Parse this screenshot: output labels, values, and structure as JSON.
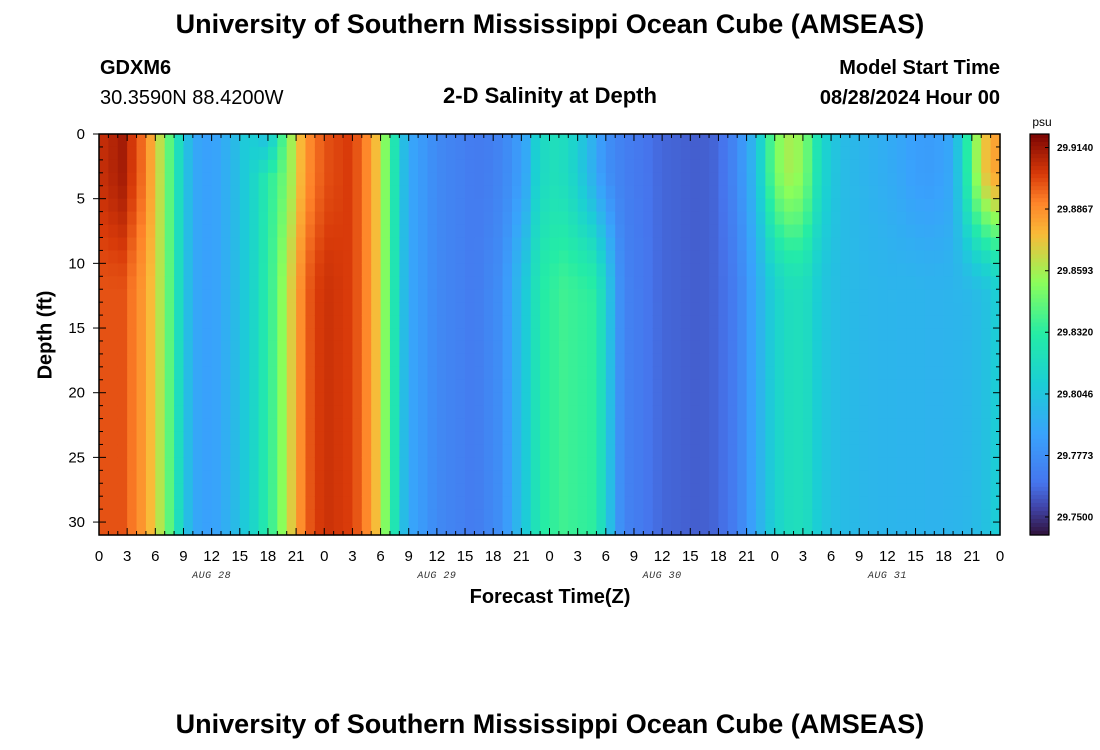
{
  "header": {
    "title": "University of Southern Mississippi Ocean Cube (AMSEAS)",
    "station": "GDXM6",
    "coords": "30.3590N  88.4200W",
    "subtitle": "2-D Salinity at Depth",
    "model_start_label": "Model Start Time",
    "model_start_value": "08/28/2024 Hour 00"
  },
  "footer": {
    "title": "University of Southern Mississippi Ocean Cube (AMSEAS)"
  },
  "chart_data": {
    "type": "heatmap",
    "title": "2-D Salinity at Depth",
    "xlabel": "Forecast Time(Z)",
    "ylabel": "Depth (ft)",
    "colorbar_unit": "psu",
    "x_range_hours": [
      0,
      96
    ],
    "y_range_ft": [
      0,
      31
    ],
    "y_inverted": true,
    "x_tick_labels": [
      "0",
      "3",
      "6",
      "9",
      "12",
      "15",
      "18",
      "21",
      "0",
      "3",
      "6",
      "9",
      "12",
      "15",
      "18",
      "21",
      "0",
      "3",
      "6",
      "9",
      "12",
      "15",
      "18",
      "21",
      "0",
      "3",
      "6",
      "9",
      "12",
      "15",
      "18",
      "21",
      "0"
    ],
    "y_tick_labels": [
      "0",
      "5",
      "10",
      "15",
      "20",
      "25",
      "30"
    ],
    "y_tick_values": [
      0,
      5,
      10,
      15,
      20,
      25,
      30
    ],
    "day_labels": [
      "AUG 28",
      "AUG 29",
      "AUG 30",
      "AUG 31"
    ],
    "colorbar_ticks": [
      "29.9140",
      "29.8867",
      "29.8593",
      "29.8320",
      "29.8046",
      "29.7773",
      "29.7500"
    ],
    "value_range": [
      29.742,
      29.92
    ],
    "surface_profile": [
      [
        0,
        29.905
      ],
      [
        2.5,
        29.912
      ],
      [
        5,
        29.89
      ],
      [
        7,
        29.855
      ],
      [
        8.5,
        29.82
      ],
      [
        10,
        29.79
      ],
      [
        12,
        29.785
      ],
      [
        14,
        29.795
      ],
      [
        16.5,
        29.815
      ],
      [
        18.5,
        29.835
      ],
      [
        20,
        29.85
      ],
      [
        22,
        29.885
      ],
      [
        24,
        29.898
      ],
      [
        26.5,
        29.902
      ],
      [
        28,
        29.895
      ],
      [
        29.5,
        29.875
      ],
      [
        31,
        29.84
      ],
      [
        32,
        29.81
      ],
      [
        33,
        29.79
      ],
      [
        36,
        29.775
      ],
      [
        40,
        29.768
      ],
      [
        42,
        29.77
      ],
      [
        44,
        29.778
      ],
      [
        45.5,
        29.79
      ],
      [
        46.5,
        29.81
      ],
      [
        48,
        29.822
      ],
      [
        50,
        29.818
      ],
      [
        52,
        29.8
      ],
      [
        54,
        29.778
      ],
      [
        56,
        29.77
      ],
      [
        60,
        29.762
      ],
      [
        64,
        29.76
      ],
      [
        66,
        29.762
      ],
      [
        68,
        29.775
      ],
      [
        70,
        29.8
      ],
      [
        72,
        29.85
      ],
      [
        74,
        29.862
      ],
      [
        75.5,
        29.845
      ],
      [
        77,
        29.815
      ],
      [
        79,
        29.8
      ],
      [
        82,
        29.795
      ],
      [
        85,
        29.79
      ],
      [
        87,
        29.785
      ],
      [
        89,
        29.784
      ],
      [
        91,
        29.79
      ],
      [
        92.5,
        29.83
      ],
      [
        94,
        29.87
      ],
      [
        96,
        29.885
      ]
    ],
    "deep_profile": [
      [
        0,
        29.898
      ],
      [
        2.5,
        29.898
      ],
      [
        5,
        29.882
      ],
      [
        7,
        29.855
      ],
      [
        8.5,
        29.82
      ],
      [
        10,
        29.79
      ],
      [
        12,
        29.785
      ],
      [
        14,
        29.795
      ],
      [
        16.5,
        29.815
      ],
      [
        18.5,
        29.838
      ],
      [
        20,
        29.862
      ],
      [
        22,
        29.895
      ],
      [
        24,
        29.905
      ],
      [
        26.5,
        29.902
      ],
      [
        28,
        29.895
      ],
      [
        29.5,
        29.875
      ],
      [
        31,
        29.84
      ],
      [
        32,
        29.81
      ],
      [
        33,
        29.79
      ],
      [
        36,
        29.775
      ],
      [
        40,
        29.768
      ],
      [
        43,
        29.778
      ],
      [
        45.5,
        29.808
      ],
      [
        47,
        29.83
      ],
      [
        49.5,
        29.837
      ],
      [
        51,
        29.835
      ],
      [
        52.5,
        29.833
      ],
      [
        54,
        29.815
      ],
      [
        55,
        29.785
      ],
      [
        56,
        29.772
      ],
      [
        60,
        29.762
      ],
      [
        64,
        29.76
      ],
      [
        66,
        29.762
      ],
      [
        68,
        29.77
      ],
      [
        70,
        29.79
      ],
      [
        72,
        29.812
      ],
      [
        74,
        29.822
      ],
      [
        75.5,
        29.818
      ],
      [
        77,
        29.805
      ],
      [
        79,
        29.8
      ],
      [
        82,
        29.797
      ],
      [
        85,
        29.796
      ],
      [
        87,
        29.796
      ],
      [
        89,
        29.795
      ],
      [
        91,
        29.796
      ],
      [
        93,
        29.798
      ],
      [
        95,
        29.804
      ],
      [
        96,
        29.812
      ]
    ]
  }
}
